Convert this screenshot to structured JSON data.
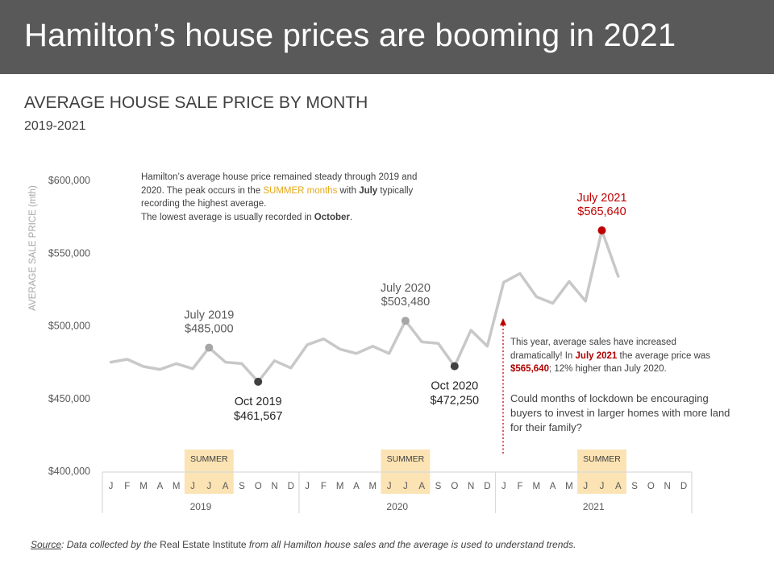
{
  "header": {
    "title": "Hamilton’s house prices are booming in 2021"
  },
  "chart_title": "AVERAGE HOUSE SALE PRICE BY MONTH",
  "chart_subtitle": "2019-2021",
  "notes": {
    "intro": {
      "p1": "Hamilton’s average house price remained steady through 2019 and 2020. The peak occurs in the ",
      "summer": "SUMMER months",
      "p2": " with ",
      "july": "July",
      "p3": " typically recording the highest average.",
      "p4": "The lowest average is usually recorded in ",
      "october": "October",
      "p5": "."
    },
    "this_year": {
      "p1": "This year, average sales have increased dramatically! In ",
      "july2021": "July 2021",
      "p2": " the average price was ",
      "price": "$565,640",
      "p3": "; 12% higher than July 2020."
    },
    "question": "Could months of lockdown be encouraging buyers to invest in larger homes with more land for their family?"
  },
  "source": {
    "label": "Source",
    "text1": ": Data collected by the ",
    "institute": "Real Estate Institute",
    "text2": " from all Hamilton house sales and the average is used to understand trends."
  },
  "colors": {
    "line": "#c8c8c8",
    "highlight": "#c00000",
    "marker_gray": "#a6a6a6",
    "marker_dark": "#404040",
    "summer_band": "#fbe3b4",
    "banner": "#595959"
  },
  "chart_data": {
    "type": "line",
    "ylabel": "AVERAGE SALE PRICE (mth)",
    "ylim": [
      400000,
      600000
    ],
    "yticks": [
      400000,
      450000,
      500000,
      550000,
      600000
    ],
    "ytick_labels": [
      "$400,000",
      "$450,000",
      "$500,000",
      "$550,000",
      "$600,000"
    ],
    "month_labels": [
      "J",
      "F",
      "M",
      "A",
      "M",
      "J",
      "J",
      "A",
      "S",
      "O",
      "N",
      "D"
    ],
    "years": [
      "2019",
      "2020",
      "2021"
    ],
    "summer_label": "SUMMER",
    "summer_months": [
      5,
      6,
      7
    ],
    "series": [
      {
        "values": [
          475000,
          477000,
          472000,
          470000,
          474000,
          470500,
          485000,
          475000,
          474000,
          461567,
          476000,
          471000,
          487000,
          491000,
          484000,
          481000,
          486000,
          481000,
          503480,
          489000,
          488000,
          472250,
          497000,
          486000,
          530000,
          536000,
          520000,
          515500,
          530500,
          517000,
          565640,
          534000
        ]
      }
    ],
    "annotations": [
      {
        "index": 6,
        "label": "July 2019",
        "value_label": "$485,000",
        "style": "gray",
        "position": "above"
      },
      {
        "index": 9,
        "label": "Oct 2019",
        "value_label": "$461,567",
        "style": "dark",
        "position": "below"
      },
      {
        "index": 18,
        "label": "July 2020",
        "value_label": "$503,480",
        "style": "gray",
        "position": "above"
      },
      {
        "index": 21,
        "label": "Oct 2020",
        "value_label": "$472,250",
        "style": "dark",
        "position": "below"
      },
      {
        "index": 30,
        "label": "July 2021",
        "value_label": "$565,640",
        "style": "red",
        "position": "above"
      }
    ]
  }
}
